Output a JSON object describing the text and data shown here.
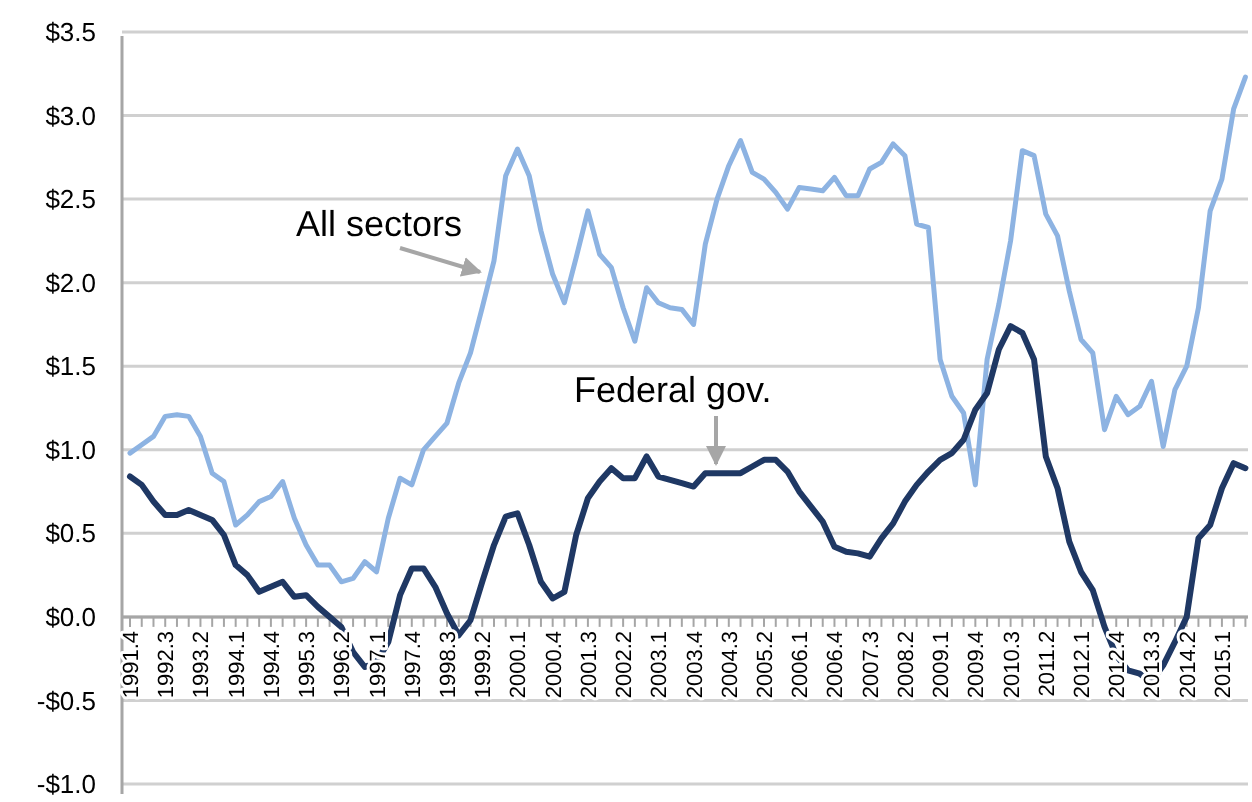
{
  "chart_data": {
    "type": "line",
    "categories": [
      "1991.4",
      null,
      null,
      "1992.3",
      null,
      null,
      "1993.2",
      null,
      null,
      "1994.1",
      null,
      null,
      "1994.4",
      null,
      null,
      "1995.3",
      null,
      null,
      "1996.2",
      null,
      null,
      "1997.1",
      null,
      null,
      "1997.4",
      null,
      null,
      "1998.3",
      null,
      null,
      "1999.2",
      null,
      null,
      "2000.1",
      null,
      null,
      "2000.4",
      null,
      null,
      "2001.3",
      null,
      null,
      "2002.2",
      null,
      null,
      "2003.1",
      null,
      null,
      "2003.4",
      null,
      null,
      "2004.3",
      null,
      null,
      "2005.2",
      null,
      null,
      "2006.1",
      null,
      null,
      "2006.4",
      null,
      null,
      "2007.3",
      null,
      null,
      "2008.2",
      null,
      null,
      "2009.1",
      null,
      null,
      "2009.4",
      null,
      null,
      "2010.3",
      null,
      null,
      "2011.2",
      null,
      null,
      "2012.1",
      null,
      null,
      "2012.4",
      null,
      null,
      "2013.3",
      null,
      null,
      "2014.2",
      null,
      null,
      "2015.1",
      null,
      null
    ],
    "series": [
      {
        "name": "All sectors",
        "color": "#8db3e2",
        "values": [
          0.98,
          1.03,
          1.08,
          1.2,
          1.21,
          1.2,
          1.08,
          0.86,
          0.81,
          0.55,
          0.61,
          0.69,
          0.72,
          0.81,
          0.59,
          0.43,
          0.31,
          0.31,
          0.21,
          0.23,
          0.33,
          0.27,
          0.59,
          0.83,
          0.79,
          1.0,
          1.08,
          1.16,
          1.4,
          1.58,
          1.85,
          2.13,
          2.64,
          2.8,
          2.64,
          2.31,
          2.05,
          1.88,
          2.15,
          2.43,
          2.17,
          2.09,
          1.85,
          1.65,
          1.97,
          1.88,
          1.85,
          1.84,
          1.75,
          2.23,
          2.5,
          2.7,
          2.85,
          2.66,
          2.62,
          2.54,
          2.44,
          2.57,
          2.56,
          2.55,
          2.63,
          2.52,
          2.52,
          2.68,
          2.72,
          2.83,
          2.76,
          2.35,
          2.33,
          1.54,
          1.32,
          1.22,
          0.79,
          1.54,
          1.87,
          2.25,
          2.79,
          2.76,
          2.41,
          2.28,
          1.95,
          1.66,
          1.58,
          1.12,
          1.32,
          1.21,
          1.26,
          1.41,
          1.02,
          1.36,
          1.5,
          1.85,
          2.43,
          2.62,
          3.04,
          3.23
        ]
      },
      {
        "name": "Federal gov.",
        "color": "#1f3864",
        "values": [
          0.84,
          0.79,
          0.69,
          0.61,
          0.61,
          0.64,
          0.61,
          0.58,
          0.49,
          0.31,
          0.25,
          0.15,
          0.18,
          0.21,
          0.12,
          0.13,
          0.06,
          0.0,
          -0.06,
          -0.21,
          -0.3,
          -0.27,
          -0.15,
          0.13,
          0.29,
          0.29,
          0.18,
          0.02,
          -0.11,
          -0.02,
          0.21,
          0.43,
          0.6,
          0.62,
          0.43,
          0.21,
          0.11,
          0.15,
          0.49,
          0.71,
          0.81,
          0.89,
          0.83,
          0.83,
          0.96,
          0.84,
          0.82,
          0.8,
          0.78,
          0.86,
          0.86,
          0.86,
          0.86,
          0.9,
          0.94,
          0.94,
          0.87,
          0.75,
          0.66,
          0.57,
          0.42,
          0.39,
          0.38,
          0.36,
          0.47,
          0.56,
          0.69,
          0.79,
          0.87,
          0.94,
          0.98,
          1.06,
          1.24,
          1.34,
          1.6,
          1.74,
          1.7,
          1.54,
          0.96,
          0.77,
          0.45,
          0.27,
          0.16,
          -0.06,
          -0.23,
          -0.32,
          -0.34,
          -0.39,
          -0.29,
          -0.15,
          0.0,
          0.47,
          0.55,
          0.77,
          0.92,
          0.89
        ]
      }
    ],
    "ylim": [
      -1.0,
      3.5
    ],
    "yticks": [
      {
        "value": -1.0,
        "label": "-$1.0"
      },
      {
        "value": -0.5,
        "label": "-$0.5"
      },
      {
        "value": 0,
        "label": "$0.0"
      },
      {
        "value": 0.5,
        "label": "$0.5"
      },
      {
        "value": 1.0,
        "label": "$1.0"
      },
      {
        "value": 1.5,
        "label": "$1.5"
      },
      {
        "value": 2.0,
        "label": "$2.0"
      },
      {
        "value": 2.5,
        "label": "$2.5"
      },
      {
        "value": 3.0,
        "label": "$3.0"
      },
      {
        "value": 3.5,
        "label": "$3.5"
      }
    ],
    "grid": "y",
    "legend": false,
    "marker": "none",
    "line_style": "solid"
  }
}
